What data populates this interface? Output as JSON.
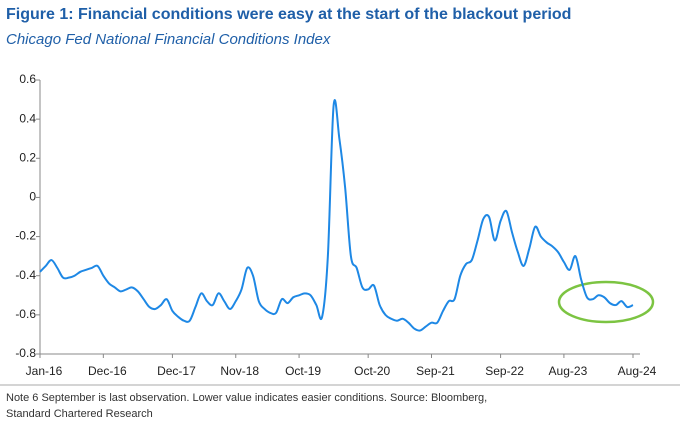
{
  "chart_data": {
    "type": "line",
    "title": "Figure 1: Financial conditions were easy at the start of the blackout period",
    "subtitle": "Chicago Fed National Financial Conditions Index",
    "note": [
      "Note 6 September is last observation. Lower value indicates easier conditions. Source: Bloomberg,",
      "Standard Chartered Research"
    ],
    "categories": [
      "Jan-16",
      null,
      null,
      null,
      null,
      null,
      null,
      null,
      null,
      null,
      null,
      "Dec-16",
      null,
      null,
      null,
      null,
      null,
      null,
      null,
      null,
      null,
      null,
      null,
      "Dec-17",
      null,
      null,
      null,
      null,
      null,
      null,
      null,
      null,
      null,
      null,
      "Nov-18",
      null,
      null,
      null,
      null,
      null,
      null,
      null,
      null,
      null,
      null,
      "Oct-19",
      null,
      null,
      null,
      null,
      null,
      null,
      null,
      null,
      null,
      null,
      null,
      "Oct-20",
      null,
      null,
      null,
      null,
      null,
      null,
      null,
      null,
      null,
      null,
      "Sep-21",
      null,
      null,
      null,
      null,
      null,
      null,
      null,
      null,
      null,
      null,
      null,
      "Sep-22",
      null,
      null,
      null,
      null,
      null,
      null,
      null,
      null,
      null,
      null,
      "Aug-23",
      null,
      null,
      null,
      null,
      null,
      null,
      null,
      null,
      null,
      null,
      null,
      "Aug-24"
    ],
    "values": [
      -0.38,
      -0.35,
      -0.32,
      -0.36,
      -0.41,
      -0.41,
      -0.4,
      -0.38,
      -0.37,
      -0.36,
      -0.35,
      -0.4,
      -0.44,
      -0.46,
      -0.48,
      -0.47,
      -0.46,
      -0.48,
      -0.52,
      -0.56,
      -0.57,
      -0.55,
      -0.52,
      -0.58,
      -0.61,
      -0.63,
      -0.63,
      -0.56,
      -0.49,
      -0.53,
      -0.55,
      -0.49,
      -0.53,
      -0.57,
      -0.53,
      -0.47,
      -0.36,
      -0.4,
      -0.53,
      -0.57,
      -0.59,
      -0.59,
      -0.52,
      -0.54,
      -0.51,
      -0.5,
      -0.49,
      -0.5,
      -0.55,
      -0.61,
      -0.3,
      0.47,
      0.3,
      0.05,
      -0.3,
      -0.36,
      -0.46,
      -0.47,
      -0.45,
      -0.55,
      -0.6,
      -0.62,
      -0.63,
      -0.62,
      -0.64,
      -0.67,
      -0.68,
      -0.66,
      -0.64,
      -0.64,
      -0.58,
      -0.53,
      -0.52,
      -0.4,
      -0.34,
      -0.32,
      -0.22,
      -0.11,
      -0.1,
      -0.22,
      -0.12,
      -0.07,
      -0.18,
      -0.28,
      -0.35,
      -0.26,
      -0.15,
      -0.2,
      -0.23,
      -0.25,
      -0.28,
      -0.33,
      -0.37,
      -0.3,
      -0.42,
      -0.51,
      -0.52,
      -0.5,
      -0.51,
      -0.54,
      -0.55,
      -0.53,
      -0.56,
      -0.55
    ],
    "color": "#1e88e5",
    "ylim": [
      -0.8,
      0.6
    ],
    "yticks": [
      -0.8,
      -0.6,
      -0.4,
      -0.2,
      0,
      0.2,
      0.4,
      0.6
    ],
    "grid": false
  }
}
